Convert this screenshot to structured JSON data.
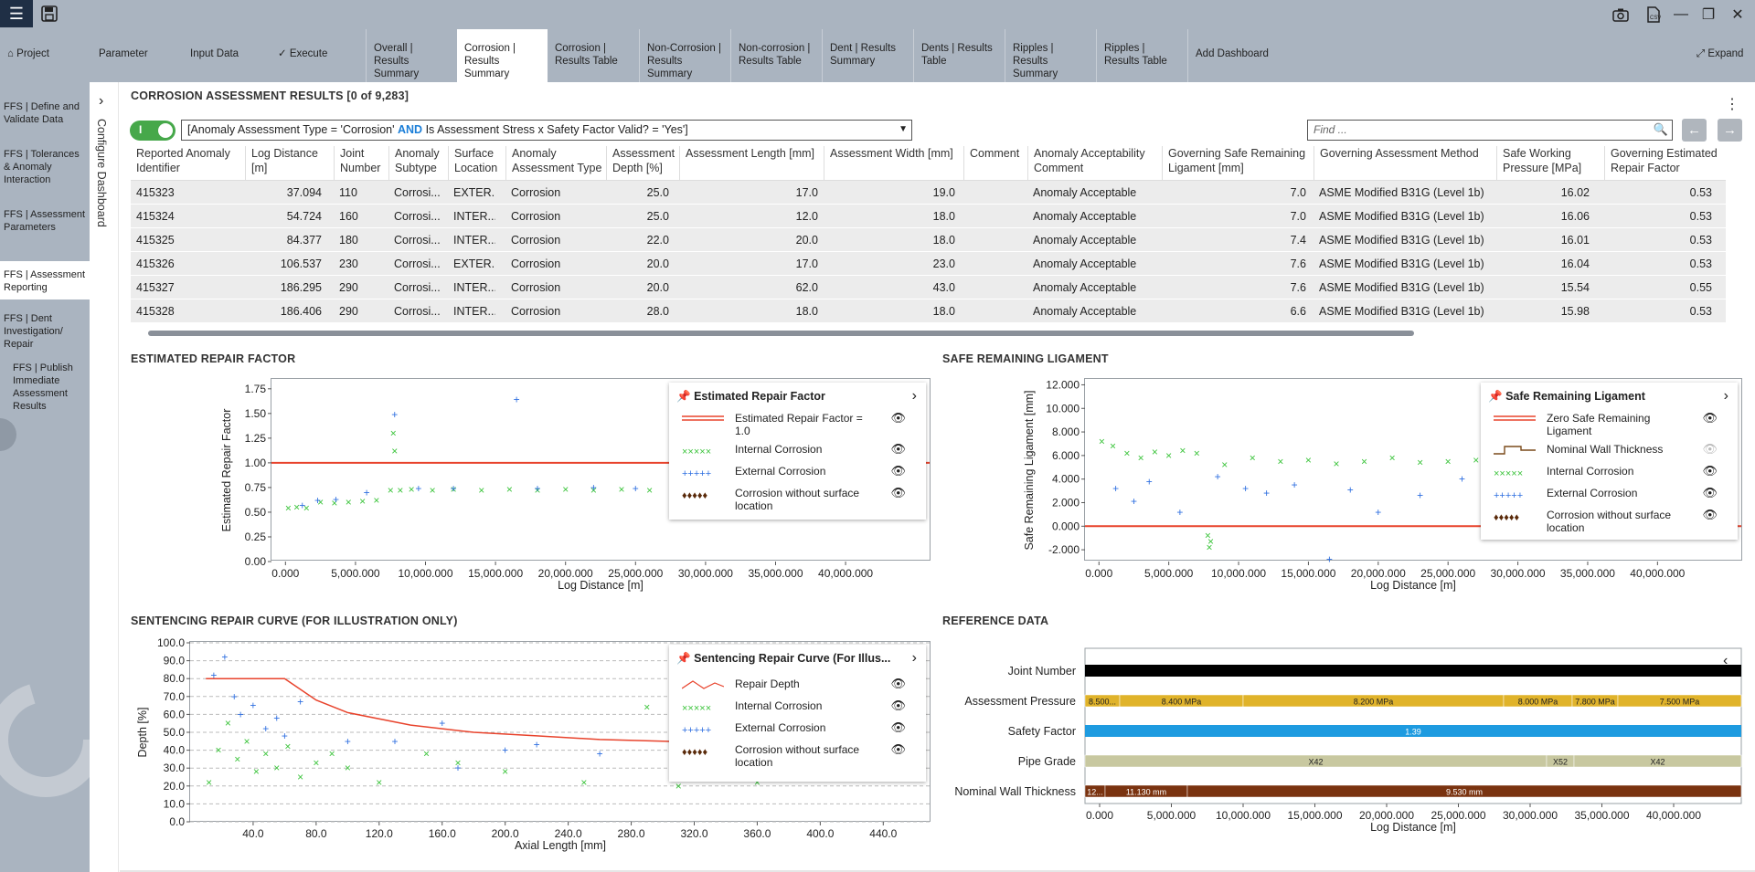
{
  "toolbar": {
    "app_icon": "menu-icon",
    "save_icon": "save-icon"
  },
  "window": {
    "buttons": [
      "camera-icon",
      "document-icon",
      "minimize-icon",
      "restore-icon",
      "close-icon"
    ]
  },
  "tabs": [
    {
      "label": "Project",
      "icon": "home-icon"
    },
    {
      "label": "Parameter"
    },
    {
      "label": "Input Data"
    },
    {
      "label": "✓ Execute"
    },
    {
      "label": "Overall | Results Summary"
    },
    {
      "label": "Corrosion | Results Summary",
      "active": true
    },
    {
      "label": "Corrosion | Results Table"
    },
    {
      "label": "Non-Corrosion | Results Summary"
    },
    {
      "label": "Non-corrosion | Results Table"
    },
    {
      "label": "Dent | Results Summary"
    },
    {
      "label": "Dents | Results Table"
    },
    {
      "label": "Ripples | Results Summary"
    },
    {
      "label": "Ripples | Results Table"
    },
    {
      "label": "Add Dashboard"
    },
    {
      "label": "Expand",
      "icon": "expand-icon"
    }
  ],
  "sidenav": [
    "FFS | Define and Validate Data",
    "FFS | Tolerances & Anomaly Interaction",
    "FFS | Assessment Parameters",
    "FFS | Assessment Reporting",
    "FFS | Dent Investigation/ Repair",
    "FFS | Publish Immediate Assessment Results"
  ],
  "config_label": "Configure Dashboard",
  "results": {
    "title": "CORROSION ASSESSMENT RESULTS [0 of 9,283]",
    "toggle_label": "I",
    "filter_pre": "[Anomaly Assessment Type = 'Corrosion' ",
    "filter_kw": "AND",
    "filter_post": " Is Assessment Stress x Safety Factor Valid? = 'Yes']",
    "find_placeholder": "Find ...",
    "columns": [
      "Reported Anomaly Identifier",
      "Log Distance [m]",
      "Joint Number",
      "Anomaly Subtype",
      "Surface Location",
      "Anomaly Assessment Type",
      "Assessment Depth [%]",
      "Assessment Length [mm]",
      "Assessment Width [mm]",
      "Comment",
      "Anomaly Acceptability Comment",
      "Governing Safe Remaining Ligament [mm]",
      "Governing Assessment Method",
      "Safe Working Pressure [MPa]",
      "Governing Estimated Repair Factor"
    ],
    "rows": [
      [
        "415323",
        "37.094",
        "110",
        "Corrosi...",
        "EXTER...",
        "Corrosion",
        "25.0",
        "17.0",
        "19.0",
        "",
        "Anomaly Acceptable",
        "7.0",
        "ASME Modified B31G (Level 1b)",
        "16.02",
        "0.53"
      ],
      [
        "415324",
        "54.724",
        "160",
        "Corrosi...",
        "INTER...",
        "Corrosion",
        "25.0",
        "12.0",
        "18.0",
        "",
        "Anomaly Acceptable",
        "7.0",
        "ASME Modified B31G (Level 1b)",
        "16.06",
        "0.53"
      ],
      [
        "415325",
        "84.377",
        "180",
        "Corrosi...",
        "INTER...",
        "Corrosion",
        "22.0",
        "20.0",
        "18.0",
        "",
        "Anomaly Acceptable",
        "7.4",
        "ASME Modified B31G (Level 1b)",
        "16.01",
        "0.53"
      ],
      [
        "415326",
        "106.537",
        "230",
        "Corrosi...",
        "EXTER...",
        "Corrosion",
        "20.0",
        "17.0",
        "23.0",
        "",
        "Anomaly Acceptable",
        "7.6",
        "ASME Modified B31G (Level 1b)",
        "16.04",
        "0.53"
      ],
      [
        "415327",
        "186.295",
        "290",
        "Corrosi...",
        "INTER...",
        "Corrosion",
        "20.0",
        "62.0",
        "43.0",
        "",
        "Anomaly Acceptable",
        "7.6",
        "ASME Modified B31G (Level 1b)",
        "15.54",
        "0.55"
      ],
      [
        "415328",
        "186.406",
        "290",
        "Corrosi...",
        "INTER...",
        "Corrosion",
        "28.0",
        "18.0",
        "18.0",
        "",
        "Anomaly Acceptable",
        "6.6",
        "ASME Modified B31G (Level 1b)",
        "15.98",
        "0.53"
      ]
    ]
  },
  "erf": {
    "title": "ESTIMATED REPAIR FACTOR",
    "legend_title": "Estimated Repair Factor",
    "legend": [
      "Estimated Repair Factor = 1.0",
      "Internal Corrosion",
      "External Corrosion",
      "Corrosion without surface location"
    ]
  },
  "srl": {
    "title": "SAFE REMAINING LIGAMENT",
    "legend_title": "Safe Remaining Ligament",
    "legend": [
      "Zero Safe Remaining Ligament",
      "Nominal Wall Thickness",
      "Internal Corrosion",
      "External Corrosion",
      "Corrosion without surface location"
    ]
  },
  "src": {
    "title": "SENTENCING REPAIR CURVE (FOR ILLUSTRATION ONLY)",
    "legend_title": "Sentencing Repair Curve (For Illus...",
    "legend": [
      "Repair Depth",
      "Internal Corrosion",
      "External Corrosion",
      "Corrosion without surface location"
    ]
  },
  "ref": {
    "title": "REFERENCE DATA",
    "rows": [
      "Joint Number",
      "Assessment Pressure",
      "Safety Factor",
      "Pipe Grade",
      "Nominal Wall Thickness"
    ],
    "pressure_segments": [
      "8.500...",
      "8.400 MPa",
      "8.200 MPa",
      "8.000 MPa",
      "7.800 MPa",
      "7.500 MPa"
    ],
    "safety_label": "1.39",
    "grade_segments": [
      "X42",
      "X52",
      "X42"
    ],
    "wall_segments": [
      "12...",
      "11.130 mm",
      "9.530 mm"
    ],
    "xlabel": "Log Distance [m]",
    "ticks": [
      "0.000",
      "5,000.000",
      "10,000.000",
      "15,000.000",
      "20,000.000",
      "25,000.000",
      "30,000.000",
      "35,000.000",
      "40,000.000"
    ]
  },
  "colors": {
    "internal": "#3cc43c",
    "external": "#2f6fe0",
    "threshold": "#e8432c",
    "nowall": "#5a2a0a",
    "pressure": "#e0b32a",
    "safety": "#1e9be0",
    "grade": "#c8c8a0",
    "wall": "#7a3310"
  },
  "chart_data": [
    {
      "type": "scatter",
      "title": "",
      "xlabel": "Log Distance [m]",
      "ylabel": "Estimated Repair Factor",
      "xlim": [
        -1000,
        46000
      ],
      "ylim": [
        0,
        1.85
      ],
      "x_ticks": [
        "0.000",
        "5,000.000",
        "10,000.000",
        "15,000.000",
        "20,000.000",
        "25,000.000",
        "30,000.000",
        "35,000.000",
        "40,000.000"
      ],
      "y_ticks": [
        "0.00",
        "0.25",
        "0.50",
        "0.75",
        "1.00",
        "1.25",
        "1.50",
        "1.75"
      ],
      "threshold": 1.0,
      "series": [
        {
          "name": "Internal Corrosion",
          "values": [
            [
              200,
              0.54
            ],
            [
              800,
              0.55
            ],
            [
              1500,
              0.54
            ],
            [
              2500,
              0.6
            ],
            [
              3500,
              0.59
            ],
            [
              4500,
              0.6
            ],
            [
              5500,
              0.61
            ],
            [
              6500,
              0.62
            ],
            [
              7500,
              0.72
            ],
            [
              7700,
              1.3
            ],
            [
              7800,
              1.12
            ],
            [
              8200,
              0.72
            ],
            [
              9000,
              0.73
            ],
            [
              10500,
              0.72
            ],
            [
              12000,
              0.73
            ],
            [
              14000,
              0.72
            ],
            [
              16000,
              0.73
            ],
            [
              18000,
              0.72
            ],
            [
              20000,
              0.73
            ],
            [
              22000,
              0.72
            ],
            [
              24000,
              0.73
            ],
            [
              26000,
              0.72
            ],
            [
              28000,
              0.72
            ]
          ]
        },
        {
          "name": "External Corrosion",
          "values": [
            [
              1200,
              0.57
            ],
            [
              2300,
              0.62
            ],
            [
              3600,
              0.63
            ],
            [
              5800,
              0.7
            ],
            [
              7800,
              1.49
            ],
            [
              9500,
              0.74
            ],
            [
              12000,
              0.74
            ],
            [
              16500,
              1.64
            ],
            [
              18000,
              0.74
            ],
            [
              22000,
              0.75
            ],
            [
              25000,
              0.74
            ]
          ]
        }
      ]
    },
    {
      "type": "scatter",
      "title": "",
      "xlabel": "Log Distance [m]",
      "ylabel": "Safe Remaining Ligament [mm]",
      "xlim": [
        -1000,
        46000
      ],
      "ylim": [
        -3,
        12.5
      ],
      "x_ticks": [
        "0.000",
        "5,000.000",
        "10,000.000",
        "15,000.000",
        "20,000.000",
        "25,000.000",
        "30,000.000",
        "35,000.000",
        "40,000.000"
      ],
      "y_ticks": [
        "-2.000",
        "0.000",
        "2.000",
        "4.000",
        "6.000",
        "8.000",
        "10.000",
        "12.000"
      ],
      "threshold": 0,
      "series": [
        {
          "name": "Internal Corrosion",
          "values": [
            [
              200,
              7.2
            ],
            [
              1000,
              6.8
            ],
            [
              2000,
              6.2
            ],
            [
              3000,
              5.8
            ],
            [
              4000,
              6.3
            ],
            [
              5000,
              6.0
            ],
            [
              6000,
              6.4
            ],
            [
              7000,
              6.2
            ],
            [
              7800,
              -0.8
            ],
            [
              7900,
              -1.8
            ],
            [
              8000,
              -1.3
            ],
            [
              9000,
              5.2
            ],
            [
              11000,
              5.8
            ],
            [
              13000,
              5.5
            ],
            [
              15000,
              5.6
            ],
            [
              17000,
              5.3
            ],
            [
              19000,
              5.5
            ],
            [
              21000,
              5.8
            ],
            [
              23000,
              5.4
            ],
            [
              25000,
              5.5
            ],
            [
              27000,
              5.6
            ],
            [
              29000,
              5.5
            ]
          ]
        },
        {
          "name": "External Corrosion",
          "values": [
            [
              1200,
              3.2
            ],
            [
              2500,
              2.1
            ],
            [
              3600,
              3.8
            ],
            [
              5800,
              1.2
            ],
            [
              8500,
              4.2
            ],
            [
              10500,
              3.2
            ],
            [
              12000,
              2.8
            ],
            [
              14000,
              3.5
            ],
            [
              16500,
              -2.8
            ],
            [
              18000,
              3.1
            ],
            [
              20000,
              1.2
            ],
            [
              23000,
              2.6
            ],
            [
              26000,
              4.0
            ],
            [
              28000,
              4.4
            ]
          ]
        }
      ]
    },
    {
      "type": "scatter",
      "title": "",
      "xlabel": "Axial Length [mm]",
      "ylabel": "Depth [%]",
      "xlim": [
        0,
        470
      ],
      "ylim": [
        0,
        100
      ],
      "x_ticks": [
        "40.0",
        "80.0",
        "120.0",
        "160.0",
        "200.0",
        "240.0",
        "280.0",
        "320.0",
        "360.0",
        "400.0",
        "440.0"
      ],
      "y_ticks": [
        "0.0",
        "10.0",
        "20.0",
        "30.0",
        "40.0",
        "50.0",
        "60.0",
        "70.0",
        "80.0",
        "90.0",
        "100.0"
      ],
      "series": [
        {
          "name": "Repair Depth",
          "values": [
            [
              10,
              80
            ],
            [
              60,
              80
            ],
            [
              80,
              68
            ],
            [
              100,
              61
            ],
            [
              140,
              54
            ],
            [
              180,
              50
            ],
            [
              220,
              48
            ],
            [
              260,
              46
            ],
            [
              300,
              45
            ],
            [
              340,
              44
            ],
            [
              380,
              43
            ]
          ]
        },
        {
          "name": "Internal Corrosion",
          "values": [
            [
              12,
              22
            ],
            [
              18,
              40
            ],
            [
              24,
              55
            ],
            [
              30,
              35
            ],
            [
              36,
              45
            ],
            [
              42,
              28
            ],
            [
              48,
              38
            ],
            [
              55,
              30
            ],
            [
              62,
              42
            ],
            [
              70,
              25
            ],
            [
              80,
              33
            ],
            [
              90,
              38
            ],
            [
              100,
              30
            ],
            [
              120,
              22
            ],
            [
              150,
              38
            ],
            [
              170,
              33
            ],
            [
              200,
              28
            ],
            [
              250,
              22
            ],
            [
              290,
              64
            ],
            [
              310,
              20
            ],
            [
              360,
              22
            ]
          ]
        },
        {
          "name": "External Corrosion",
          "values": [
            [
              15,
              82
            ],
            [
              22,
              92
            ],
            [
              28,
              70
            ],
            [
              32,
              60
            ],
            [
              40,
              65
            ],
            [
              48,
              52
            ],
            [
              55,
              58
            ],
            [
              60,
              48
            ],
            [
              70,
              67
            ],
            [
              100,
              45
            ],
            [
              130,
              45
            ],
            [
              160,
              55
            ],
            [
              170,
              30
            ],
            [
              200,
              40
            ],
            [
              220,
              43
            ],
            [
              260,
              38
            ]
          ]
        }
      ]
    }
  ]
}
